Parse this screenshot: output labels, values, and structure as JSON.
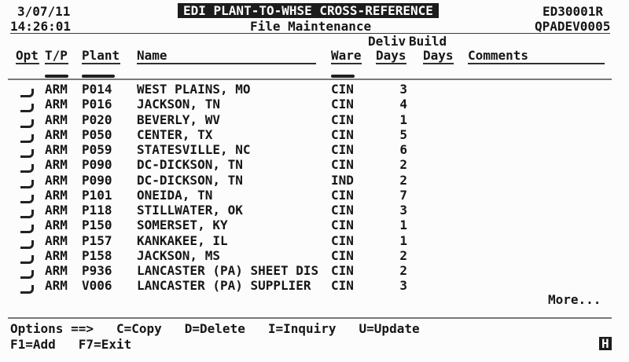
{
  "screen": {
    "date": "3/07/11",
    "time": "14:26:01",
    "title": "EDI PLANT-TO-WHSE CROSS-REFERENCE",
    "subtitle": "File Maintenance",
    "program_id": "ED30001R",
    "device_id": "QPADEV0005"
  },
  "table": {
    "header_group": {
      "deliv": "Deliv",
      "build": "Build"
    },
    "columns": {
      "opt": "Opt",
      "tp": "T/P",
      "plant": "Plant",
      "name": "Name",
      "ware": "Ware",
      "deliv_days": "Days",
      "build_days": "Days",
      "comments": "Comments"
    },
    "rows": [
      {
        "tp": "ARM",
        "plant": "P014",
        "name": "WEST PLAINS, MO",
        "ware": "CIN",
        "deliv_days": "3"
      },
      {
        "tp": "ARM",
        "plant": "P016",
        "name": "JACKSON, TN",
        "ware": "CIN",
        "deliv_days": "4"
      },
      {
        "tp": "ARM",
        "plant": "P020",
        "name": "BEVERLY, WV",
        "ware": "CIN",
        "deliv_days": "1"
      },
      {
        "tp": "ARM",
        "plant": "P050",
        "name": "CENTER, TX",
        "ware": "CIN",
        "deliv_days": "5"
      },
      {
        "tp": "ARM",
        "plant": "P059",
        "name": "STATESVILLE, NC",
        "ware": "CIN",
        "deliv_days": "6"
      },
      {
        "tp": "ARM",
        "plant": "P090",
        "name": "DC-DICKSON, TN",
        "ware": "CIN",
        "deliv_days": "2"
      },
      {
        "tp": "ARM",
        "plant": "P090",
        "name": "DC-DICKSON, TN",
        "ware": "IND",
        "deliv_days": "2"
      },
      {
        "tp": "ARM",
        "plant": "P101",
        "name": "ONEIDA, TN",
        "ware": "CIN",
        "deliv_days": "7"
      },
      {
        "tp": "ARM",
        "plant": "P118",
        "name": "STILLWATER, OK",
        "ware": "CIN",
        "deliv_days": "3"
      },
      {
        "tp": "ARM",
        "plant": "P150",
        "name": "SOMERSET, KY",
        "ware": "CIN",
        "deliv_days": "1"
      },
      {
        "tp": "ARM",
        "plant": "P157",
        "name": "KANKAKEE, IL",
        "ware": "CIN",
        "deliv_days": "1"
      },
      {
        "tp": "ARM",
        "plant": "P158",
        "name": "JACKSON, MS",
        "ware": "CIN",
        "deliv_days": "2"
      },
      {
        "tp": "ARM",
        "plant": "P936",
        "name": "LANCASTER (PA) SHEET DIS",
        "ware": "CIN",
        "deliv_days": "2"
      },
      {
        "tp": "ARM",
        "plant": "V006",
        "name": "LANCASTER (PA) SUPPLIER",
        "ware": "CIN",
        "deliv_days": "3"
      }
    ],
    "more_label": "More..."
  },
  "footer": {
    "options_label": "Options ==>",
    "options": [
      "C=Copy",
      "D=Delete",
      "I=Inquiry",
      "U=Update"
    ],
    "fkeys": [
      "F1=Add",
      "F7=Exit"
    ],
    "status_indicator": "H"
  },
  "colors": {
    "background": "#fcfcfc",
    "text": "#161616",
    "reverse_bg": "#1c1c1c",
    "reverse_text": "#ffffff",
    "separator": "#787878"
  }
}
